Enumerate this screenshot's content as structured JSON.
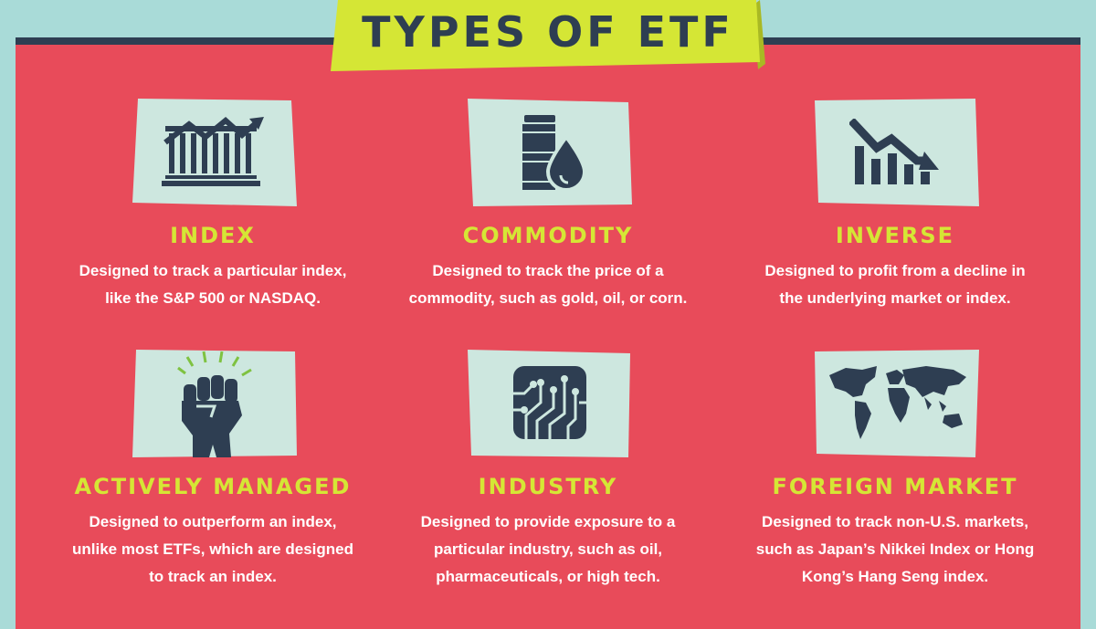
{
  "title": "TYPES OF ETF",
  "colors": {
    "background": "#a9dbd8",
    "panel": "#e84b5a",
    "panel_top_bar": "#2e3e52",
    "banner": "#d5e635",
    "icon_box": "#cde7df",
    "icon": "#2e3e52",
    "card_title": "#d5e635",
    "card_text": "#ffffff"
  },
  "cards": [
    {
      "icon": "index-chart-icon",
      "title": "INDEX",
      "desc_lines": [
        "Designed to track a particular index,",
        "like the S&P 500 or NASDAQ."
      ]
    },
    {
      "icon": "oil-barrel-icon",
      "title": "COMMODITY",
      "desc_lines": [
        "Designed to track the price of a",
        "commodity, such as gold, oil, or corn."
      ]
    },
    {
      "icon": "declining-chart-icon",
      "title": "INVERSE",
      "desc_lines": [
        "Designed to profit from a decline in",
        "the underlying market or index."
      ]
    },
    {
      "icon": "raised-fist-icon",
      "title": "ACTIVELY MANAGED",
      "desc_lines": [
        "Designed to outperform an index,",
        "unlike most ETFs, which are designed",
        "to track an index."
      ]
    },
    {
      "icon": "circuit-board-icon",
      "title": "INDUSTRY",
      "desc_lines": [
        "Designed to provide exposure to a",
        "particular industry, such as oil,",
        "pharmaceuticals, or high tech."
      ]
    },
    {
      "icon": "world-map-icon",
      "title": "FOREIGN MARKET",
      "desc_lines": [
        "Designed to track non-U.S. markets,",
        "such as Japan’s Nikkei Index or Hong",
        "Kong’s Hang Seng index."
      ]
    }
  ]
}
